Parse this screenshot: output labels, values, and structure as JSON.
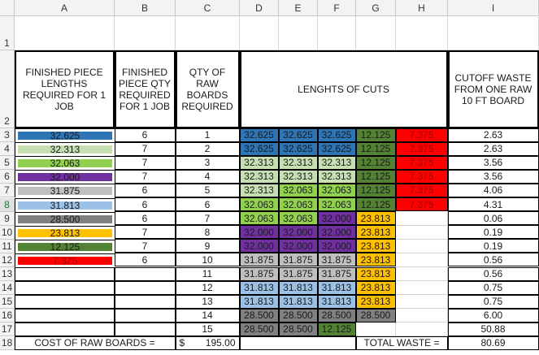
{
  "columns": [
    "A",
    "B",
    "C",
    "D",
    "E",
    "F",
    "G",
    "H",
    "I"
  ],
  "row_numbers": [
    "1",
    "2",
    "3",
    "4",
    "5",
    "6",
    "7",
    "8",
    "9",
    "10",
    "11",
    "12",
    "13",
    "14",
    "15",
    "16",
    "17",
    "18"
  ],
  "headers": [
    "FINISHED PIECE LENGTHS REQUIRED FOR 1 JOB",
    "FINISHED PIECE QTY REQUIRED FOR 1 JOB",
    "QTY OF RAW BOARDS REQUIRED",
    "LENGHTS OF CUTS",
    "CUTOFF WASTE FROM ONE RAW 10 FT BOARD"
  ],
  "pieces": [
    {
      "length": "32.625",
      "qty": "6",
      "fill": "#2e75b6",
      "text_color": "#1a1a1a"
    },
    {
      "length": "32.313",
      "qty": "7",
      "fill": "#c6e0b4",
      "text_color": "#1a1a1a"
    },
    {
      "length": "32.063",
      "qty": "7",
      "fill": "#92d050",
      "text_color": "#1a1a1a"
    },
    {
      "length": "32.000",
      "qty": "7",
      "fill": "#7030a0",
      "text_color": "#1a1a1a"
    },
    {
      "length": "31.875",
      "qty": "6",
      "fill": "#bfbfbf",
      "text_color": "#1a1a1a"
    },
    {
      "length": "31.813",
      "qty": "6",
      "fill": "#9bc2e6",
      "text_color": "#1a1a1a"
    },
    {
      "length": "28.500",
      "qty": "6",
      "fill": "#808080",
      "text_color": "#1a1a1a"
    },
    {
      "length": "23.813",
      "qty": "7",
      "fill": "#ffc000",
      "text_color": "#1a1a1a"
    },
    {
      "length": "12.125",
      "qty": "7",
      "fill": "#548235",
      "text_color": "#1a1a1a"
    },
    {
      "length": "7.375",
      "qty": "6",
      "fill": "#ff0000",
      "text_color": "#a00000"
    }
  ],
  "boards": [
    {
      "qty": "1",
      "cuts": [
        "32.625",
        "32.625",
        "32.625",
        "12.125",
        "7.375"
      ],
      "waste": "2.63"
    },
    {
      "qty": "2",
      "cuts": [
        "32.625",
        "32.625",
        "32.625",
        "12.125",
        "7.375"
      ],
      "waste": "2.63"
    },
    {
      "qty": "3",
      "cuts": [
        "32.313",
        "32.313",
        "32.313",
        "12.125",
        "7.375"
      ],
      "waste": "3.56"
    },
    {
      "qty": "4",
      "cuts": [
        "32.313",
        "32.313",
        "32.313",
        "12.125",
        "7.375"
      ],
      "waste": "3.56"
    },
    {
      "qty": "5",
      "cuts": [
        "32.313",
        "32.063",
        "32.063",
        "12.125",
        "7.375"
      ],
      "waste": "4.06"
    },
    {
      "qty": "6",
      "cuts": [
        "32.063",
        "32.063",
        "32.063",
        "12.125",
        "7.375"
      ],
      "waste": "4.31"
    },
    {
      "qty": "7",
      "cuts": [
        "32.063",
        "32.063",
        "32.000",
        "23.813"
      ],
      "waste": "0.06"
    },
    {
      "qty": "8",
      "cuts": [
        "32.000",
        "32.000",
        "32.000",
        "23.813"
      ],
      "waste": "0.19"
    },
    {
      "qty": "9",
      "cuts": [
        "32.000",
        "32.000",
        "32.000",
        "23.813"
      ],
      "waste": "0.19"
    },
    {
      "qty": "10",
      "cuts": [
        "31.875",
        "31.875",
        "31.875",
        "23.813"
      ],
      "waste": "0.56"
    },
    {
      "qty": "11",
      "cuts": [
        "31.875",
        "31.875",
        "31.875",
        "23.813"
      ],
      "waste": "0.56"
    },
    {
      "qty": "12",
      "cuts": [
        "31.813",
        "31.813",
        "31.813",
        "23.813"
      ],
      "waste": "0.75"
    },
    {
      "qty": "13",
      "cuts": [
        "31.813",
        "31.813",
        "31.813",
        "23.813"
      ],
      "waste": "0.75"
    },
    {
      "qty": "14",
      "cuts": [
        "28.500",
        "28.500",
        "28.500",
        "28.500"
      ],
      "waste": "6.00"
    },
    {
      "qty": "15",
      "cuts": [
        "28.500",
        "28.500",
        "12.125"
      ],
      "waste": "50.88"
    }
  ],
  "footer": {
    "cost_label": "COST OF RAW BOARDS =",
    "currency": "$",
    "cost": "195.00",
    "waste_label": "TOTAL WASTE =",
    "total_waste": "80.69"
  }
}
